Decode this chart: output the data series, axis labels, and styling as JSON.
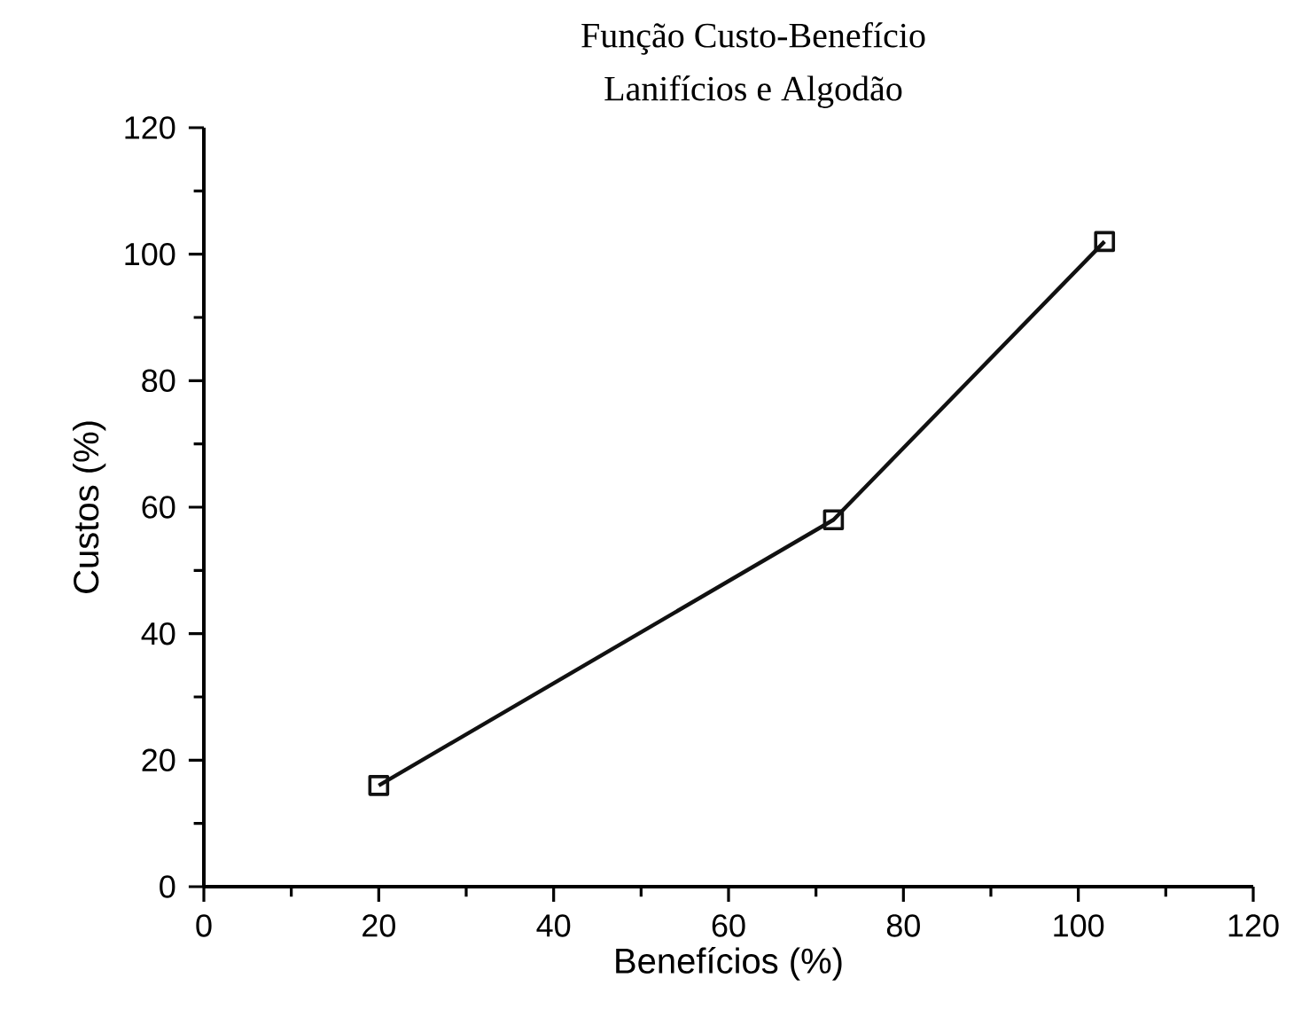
{
  "chart_data": {
    "type": "line",
    "title": "Função Custo-Benefício",
    "subtitle": "Lanifícios e Algodão",
    "xlabel": "Benefícios (%)",
    "ylabel": "Custos (%)",
    "x": [
      20,
      72,
      103
    ],
    "values": [
      16,
      58,
      102
    ],
    "color": "#111111",
    "xlim": [
      0,
      120
    ],
    "ylim": [
      0,
      120
    ],
    "xticks": [
      0,
      20,
      40,
      60,
      80,
      100,
      120
    ],
    "yticks": [
      0,
      20,
      40,
      60,
      80,
      100,
      120
    ],
    "grid": false,
    "marker": "square",
    "line_style": "solid"
  }
}
